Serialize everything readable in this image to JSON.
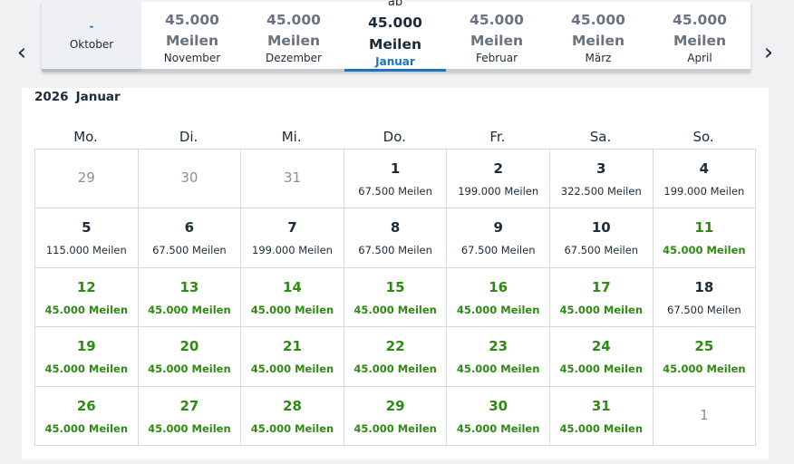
{
  "nav": {
    "prev_icon": "chevron-left-icon",
    "next_icon": "chevron-right-icon"
  },
  "months": [
    {
      "price": "-",
      "unit": "",
      "name": "Oktober"
    },
    {
      "price": "45.000",
      "unit": "Meilen",
      "name": "November"
    },
    {
      "price": "45.000",
      "unit": "Meilen",
      "name": "Dezember"
    },
    {
      "prefix": "ab",
      "price": "45.000",
      "unit": "Meilen",
      "name": "Januar",
      "active": true
    },
    {
      "price": "45.000",
      "unit": "Meilen",
      "name": "Februar"
    },
    {
      "price": "45.000",
      "unit": "Meilen",
      "name": "März"
    },
    {
      "price": "45.000",
      "unit": "Meilen",
      "name": "April"
    }
  ],
  "calendar": {
    "year": "2026",
    "month": "Januar",
    "weekdays": [
      "Mo.",
      "Di.",
      "Mi.",
      "Do.",
      "Fr.",
      "Sa.",
      "So."
    ],
    "days": [
      {
        "day": "29",
        "miles": "",
        "type": "empty"
      },
      {
        "day": "30",
        "miles": "",
        "type": "empty"
      },
      {
        "day": "31",
        "miles": "",
        "type": "empty"
      },
      {
        "day": "1",
        "miles": "67.500  Meilen",
        "type": "normal"
      },
      {
        "day": "2",
        "miles": "199.000  Meilen",
        "type": "normal"
      },
      {
        "day": "3",
        "miles": "322.500  Meilen",
        "type": "normal"
      },
      {
        "day": "4",
        "miles": "199.000  Meilen",
        "type": "normal"
      },
      {
        "day": "5",
        "miles": "115.000  Meilen",
        "type": "normal"
      },
      {
        "day": "6",
        "miles": "67.500  Meilen",
        "type": "normal"
      },
      {
        "day": "7",
        "miles": "199.000  Meilen",
        "type": "normal"
      },
      {
        "day": "8",
        "miles": "67.500  Meilen",
        "type": "normal"
      },
      {
        "day": "9",
        "miles": "67.500  Meilen",
        "type": "normal"
      },
      {
        "day": "10",
        "miles": "67.500  Meilen",
        "type": "normal"
      },
      {
        "day": "11",
        "miles": "45.000  Meilen",
        "type": "green"
      },
      {
        "day": "12",
        "miles": "45.000  Meilen",
        "type": "green"
      },
      {
        "day": "13",
        "miles": "45.000  Meilen",
        "type": "green"
      },
      {
        "day": "14",
        "miles": "45.000  Meilen",
        "type": "green"
      },
      {
        "day": "15",
        "miles": "45.000  Meilen",
        "type": "green"
      },
      {
        "day": "16",
        "miles": "45.000  Meilen",
        "type": "green"
      },
      {
        "day": "17",
        "miles": "45.000  Meilen",
        "type": "green"
      },
      {
        "day": "18",
        "miles": "67.500  Meilen",
        "type": "normal"
      },
      {
        "day": "19",
        "miles": "45.000  Meilen",
        "type": "green"
      },
      {
        "day": "20",
        "miles": "45.000  Meilen",
        "type": "green"
      },
      {
        "day": "21",
        "miles": "45.000  Meilen",
        "type": "green"
      },
      {
        "day": "22",
        "miles": "45.000  Meilen",
        "type": "green"
      },
      {
        "day": "23",
        "miles": "45.000  Meilen",
        "type": "green"
      },
      {
        "day": "24",
        "miles": "45.000  Meilen",
        "type": "green"
      },
      {
        "day": "25",
        "miles": "45.000  Meilen",
        "type": "green"
      },
      {
        "day": "26",
        "miles": "45.000  Meilen",
        "type": "green"
      },
      {
        "day": "27",
        "miles": "45.000  Meilen",
        "type": "green"
      },
      {
        "day": "28",
        "miles": "45.000  Meilen",
        "type": "green"
      },
      {
        "day": "29",
        "miles": "45.000  Meilen",
        "type": "green"
      },
      {
        "day": "30",
        "miles": "45.000  Meilen",
        "type": "green"
      },
      {
        "day": "31",
        "miles": "45.000  Meilen",
        "type": "green"
      },
      {
        "day": "1",
        "miles": "",
        "type": "empty"
      }
    ]
  },
  "colors": {
    "accent": "#1a73c5",
    "green": "#2e8a13",
    "text": "#1c2b3a",
    "muted": "#6b737c"
  }
}
